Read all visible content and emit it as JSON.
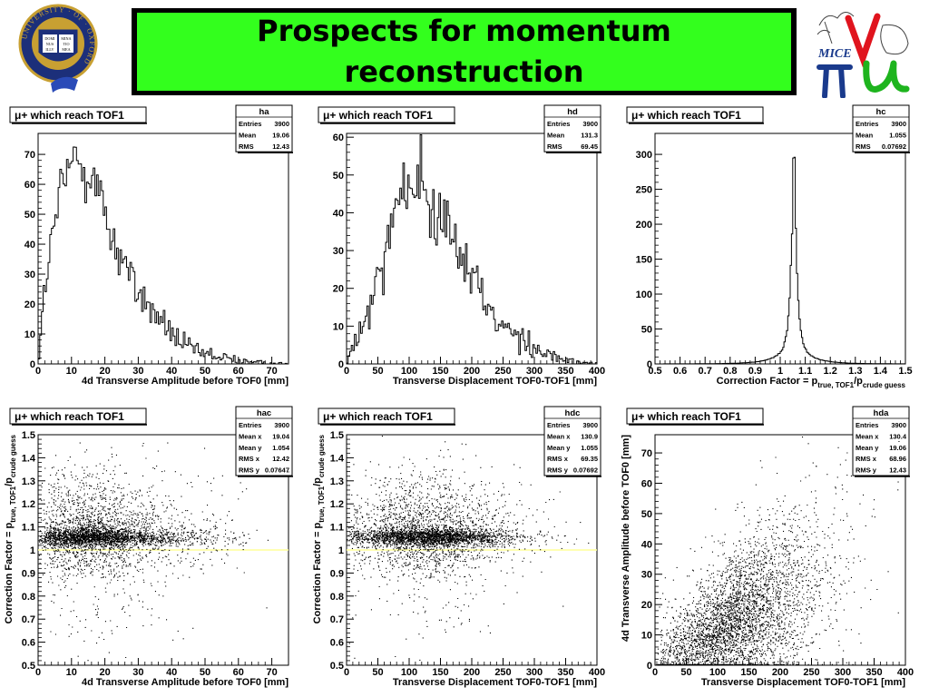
{
  "title": "Prospects for momentum reconstruction",
  "logos": {
    "oxford": {
      "ring_text": "UNIVERSITY · OF · OXFORD",
      "book_left": [
        "DOMI",
        "NUS",
        "ILLV"
      ],
      "book_right": [
        "MINA",
        "TIO",
        "MEA"
      ]
    },
    "mice": {
      "text": "MICE"
    }
  },
  "colors": {
    "title_bg": "#33ff1d",
    "title_border": "#000000",
    "ref_line": "#ffff99",
    "mice_red": "#e0141e",
    "mice_blue": "#1a3a8c",
    "mice_green": "#1eb41e"
  },
  "chart_data": [
    {
      "id": "ha",
      "type": "histogram",
      "label": "μ+ which reach TOF1",
      "stats": [
        [
          "Entries",
          "3900"
        ],
        [
          "Mean",
          "19.06"
        ],
        [
          "RMS",
          "12.43"
        ]
      ],
      "xlabel": "4d Transverse Amplitude before TOF0 [mm]",
      "ylabel": "",
      "xlim": [
        0,
        75
      ],
      "ylim": [
        0,
        77
      ],
      "xticks": [
        0,
        10,
        20,
        30,
        40,
        50,
        60,
        70
      ],
      "yticks": [
        0,
        10,
        20,
        30,
        40,
        50,
        60,
        70
      ],
      "profile": [
        [
          0,
          0
        ],
        [
          1,
          12
        ],
        [
          2,
          25
        ],
        [
          4,
          40
        ],
        [
          6,
          53
        ],
        [
          8,
          62
        ],
        [
          10,
          66
        ],
        [
          12,
          68
        ],
        [
          14,
          68
        ],
        [
          16,
          64
        ],
        [
          18,
          57
        ],
        [
          20,
          50
        ],
        [
          22,
          43
        ],
        [
          24,
          38
        ],
        [
          26,
          33
        ],
        [
          28,
          28
        ],
        [
          30,
          24
        ],
        [
          32,
          21
        ],
        [
          34,
          18
        ],
        [
          36,
          15
        ],
        [
          38,
          13
        ],
        [
          40,
          10
        ],
        [
          42,
          8
        ],
        [
          44,
          6
        ],
        [
          46,
          5
        ],
        [
          48,
          4
        ],
        [
          50,
          3
        ],
        [
          52,
          3
        ],
        [
          54,
          2
        ],
        [
          56,
          2
        ],
        [
          58,
          1.5
        ],
        [
          60,
          1
        ],
        [
          62,
          1
        ],
        [
          64,
          0.5
        ],
        [
          66,
          0.4
        ],
        [
          68,
          0.2
        ],
        [
          70,
          0.1
        ],
        [
          72,
          0
        ],
        [
          75,
          0
        ]
      ],
      "nbins": 150,
      "noise": 0.18
    },
    {
      "id": "hd",
      "type": "histogram",
      "label": "μ+ which reach TOF1",
      "stats": [
        [
          "Entries",
          "3900"
        ],
        [
          "Mean",
          "131.3"
        ],
        [
          "RMS",
          "69.45"
        ]
      ],
      "xlabel": "Transverse Displacement TOF0-TOF1 [mm]",
      "ylabel": "",
      "xlim": [
        0,
        400
      ],
      "ylim": [
        0,
        61
      ],
      "xticks": [
        0,
        50,
        100,
        150,
        200,
        250,
        300,
        350,
        400
      ],
      "yticks": [
        0,
        10,
        20,
        30,
        40,
        50,
        60
      ],
      "profile": [
        [
          0,
          0
        ],
        [
          10,
          4
        ],
        [
          25,
          9
        ],
        [
          40,
          16
        ],
        [
          55,
          26
        ],
        [
          70,
          36
        ],
        [
          85,
          44
        ],
        [
          100,
          47
        ],
        [
          115,
          48
        ],
        [
          130,
          46
        ],
        [
          145,
          42
        ],
        [
          160,
          37
        ],
        [
          175,
          32
        ],
        [
          190,
          27
        ],
        [
          205,
          22
        ],
        [
          220,
          18
        ],
        [
          235,
          14
        ],
        [
          250,
          11
        ],
        [
          265,
          8
        ],
        [
          280,
          6
        ],
        [
          295,
          4
        ],
        [
          310,
          3
        ],
        [
          325,
          2
        ],
        [
          340,
          1.5
        ],
        [
          355,
          1
        ],
        [
          370,
          0.5
        ],
        [
          385,
          0.2
        ],
        [
          400,
          0
        ]
      ],
      "nbins": 160,
      "noise": 0.18
    },
    {
      "id": "hc",
      "type": "histogram",
      "label": "μ+ which reach TOF1",
      "stats": [
        [
          "Entries",
          "3900"
        ],
        [
          "Mean",
          "1.055"
        ],
        [
          "RMS",
          "0.07692"
        ]
      ],
      "xlabel": "Correction Factor = p",
      "xlabel_sub1": "true, TOF1",
      "xlabel_mid": "/p",
      "xlabel_sub2": "crude guess",
      "ylabel": "",
      "xlim": [
        0.5,
        1.5
      ],
      "ylim": [
        0,
        330
      ],
      "xticks": [
        0.5,
        0.6,
        0.7,
        0.8,
        0.9,
        1,
        1.1,
        1.2,
        1.3,
        1.4,
        1.5
      ],
      "yticks": [
        0,
        50,
        100,
        150,
        200,
        250,
        300
      ],
      "peak": {
        "center": 1.055,
        "height": 318
      },
      "nbins": 200
    },
    {
      "id": "hac",
      "type": "scatter",
      "label": "μ+ which reach TOF1",
      "stats": [
        [
          "Entries",
          "3900"
        ],
        [
          "Mean x",
          "19.04"
        ],
        [
          "Mean y",
          "1.054"
        ],
        [
          "RMS x",
          "12.42"
        ],
        [
          "RMS y",
          "0.07647"
        ]
      ],
      "xlabel": "4d Transverse Amplitude before TOF0 [mm]",
      "ylabel": "Correction Factor = p",
      "ylabel_sub1": "true, TOF1",
      "ylabel_mid": "/p",
      "ylabel_sub2": "crude guess",
      "xlim": [
        0,
        75
      ],
      "ylim": [
        0.5,
        1.5
      ],
      "xticks": [
        0,
        10,
        20,
        30,
        40,
        50,
        60,
        70
      ],
      "yticks": [
        0.5,
        0.6,
        0.7,
        0.8,
        0.9,
        1,
        1.1,
        1.2,
        1.3,
        1.4,
        1.5
      ],
      "ref_y": 1.0,
      "dist": {
        "n": 3900,
        "x_mode": "amp",
        "x_mean": 19.04,
        "x_rms": 12.42,
        "y_mean": 1.054,
        "y_rms": 0.07647
      }
    },
    {
      "id": "hdc",
      "type": "scatter",
      "label": "μ+ which reach TOF1",
      "stats": [
        [
          "Entries",
          "3900"
        ],
        [
          "Mean x",
          "130.9"
        ],
        [
          "Mean y",
          "1.055"
        ],
        [
          "RMS x",
          "69.35"
        ],
        [
          "RMS y",
          "0.07692"
        ]
      ],
      "xlabel": "Transverse Displacement TOF0-TOF1 [mm]",
      "ylabel": "Correction Factor = p",
      "ylabel_sub1": "true, TOF1",
      "ylabel_mid": "/p",
      "ylabel_sub2": "crude guess",
      "xlim": [
        0,
        400
      ],
      "ylim": [
        0.5,
        1.5
      ],
      "xticks": [
        0,
        50,
        100,
        150,
        200,
        250,
        300,
        350,
        400
      ],
      "yticks": [
        0.5,
        0.6,
        0.7,
        0.8,
        0.9,
        1,
        1.1,
        1.2,
        1.3,
        1.4,
        1.5
      ],
      "ref_y": 1.0,
      "dist": {
        "n": 3900,
        "x_mode": "disp",
        "x_mean": 130.9,
        "x_rms": 69.35,
        "y_mean": 1.055,
        "y_rms": 0.07692
      }
    },
    {
      "id": "hda",
      "type": "scatter",
      "label": "μ+ which reach TOF1",
      "stats": [
        [
          "Entries",
          "3900"
        ],
        [
          "Mean x",
          "130.4"
        ],
        [
          "Mean y",
          "19.06"
        ],
        [
          "RMS x",
          "68.96"
        ],
        [
          "RMS y",
          "12.43"
        ]
      ],
      "xlabel": "Transverse Displacement TOF0-TOF1 [mm]",
      "ylabel": "4d Transverse Amplitude before TOF0 [mm]",
      "xlim": [
        0,
        400
      ],
      "ylim": [
        0,
        76
      ],
      "xticks": [
        0,
        50,
        100,
        150,
        200,
        250,
        300,
        350,
        400
      ],
      "yticks": [
        0,
        10,
        20,
        30,
        40,
        50,
        60,
        70
      ],
      "dist": {
        "n": 3900,
        "x_mode": "disp",
        "x_mean": 130.4,
        "x_rms": 68.96,
        "y_mean": 19.06,
        "y_rms": 12.43,
        "correlated": true
      }
    }
  ]
}
